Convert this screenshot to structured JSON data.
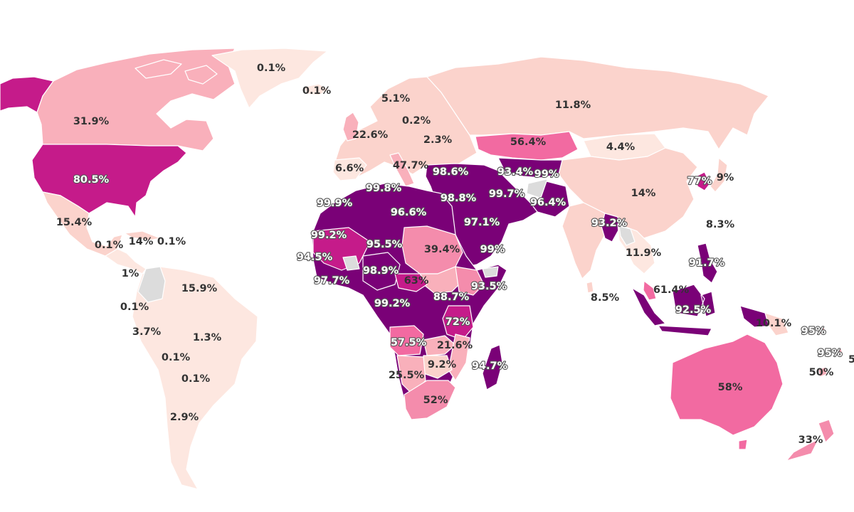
{
  "palette": {
    "background": "#ffffff",
    "no_data": "#dcdcdc",
    "scale": [
      "#fde7e0",
      "#fbd3cc",
      "#f9b0bb",
      "#f48cac",
      "#f26aa1",
      "#c51b8a",
      "#7a0177"
    ]
  },
  "labels": {
    "usa": "80.5%",
    "canada": "31.9%",
    "greenland": "0.1%",
    "iceland": "0.1%",
    "mexico": "15.4%",
    "guatemala": "0.1%",
    "cuba": "14%",
    "caribbean": "0.1%",
    "panama": "1%",
    "guyana": "15.9%",
    "colombia": "0.1%",
    "peru": "3.7%",
    "brazil": "1.3%",
    "bolivia": "0.1%",
    "paraguay": "0.1%",
    "argentina": "2.9%",
    "sweden": "5.1%",
    "poland": "0.2%",
    "uk": "22.6%",
    "ukraine": "2.3%",
    "spain": "6.6%",
    "italy": "47.7%",
    "russia": "11.8%",
    "kazakhstan": "56.4%",
    "mongolia": "4.4%",
    "china": "14%",
    "korea": "77%",
    "japan": "9%",
    "taiwan": "8.3%",
    "india": "11.9%",
    "myanmar": "93.2%",
    "srilanka": "8.5%",
    "philippines": "91.7%",
    "malaysia": "61.4%",
    "indonesia": "92.5%",
    "png": "10.1%",
    "turkey": "98.6%",
    "turkmenistan": "93.4%",
    "tajikistan": "99%",
    "jordan": "98.8%",
    "iran": "99.7%",
    "afghanistan": "96.4%",
    "saudi": "97.1%",
    "yemen": "99%",
    "algeria": "99.8%",
    "mauritania": "99.9%",
    "libya": "96.6%",
    "mali": "99.2%",
    "niger": "95.5%",
    "sudan": "39.4%",
    "senegal": "94.5%",
    "nigeria": "98.9%",
    "ghana": "97.7%",
    "car": "63%",
    "congo": "99.2%",
    "drc": "88.7%",
    "somalia": "93.5%",
    "tanzania": "72%",
    "angola": "57.5%",
    "zambia": "21.6%",
    "zimbabwe": "9.2%",
    "madagascar": "94.7%",
    "namibia": "25.5%",
    "southafrica": "52%",
    "australia": "58%",
    "newzealand": "33%",
    "fiji": "95%",
    "vanuatu": "95%",
    "newcaledonia": "50%",
    "tonga": "5"
  }
}
